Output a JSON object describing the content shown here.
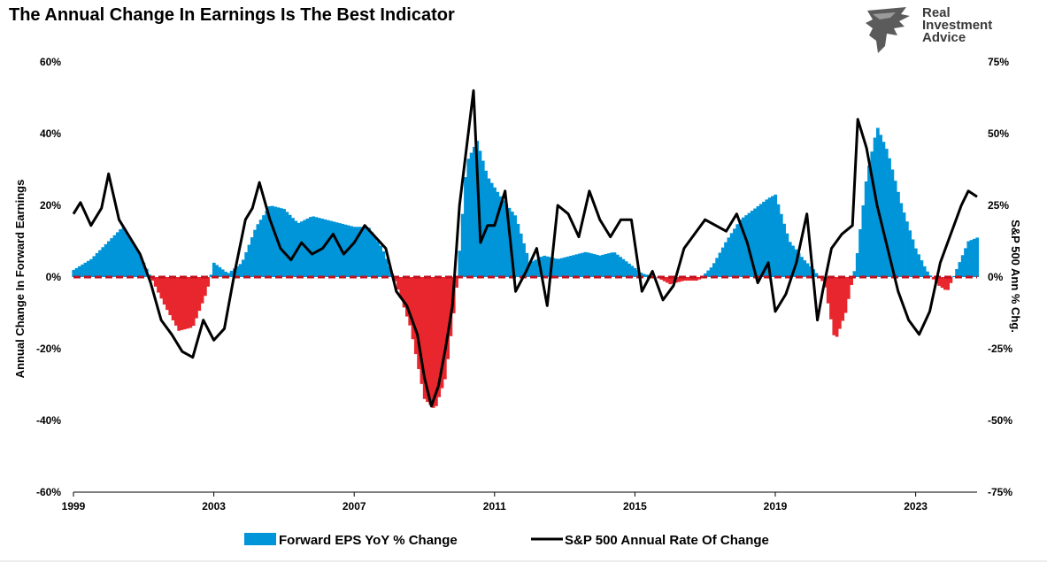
{
  "header": {
    "title": "The Annual Change In Earnings Is The Best Indicator",
    "logo_lines": [
      "Real",
      "Investment",
      "Advice"
    ]
  },
  "chart_data": {
    "type": "area",
    "title": "The Annual Change In Earnings Is The Best Indicator",
    "ylabel_left": "Annual Change In Forward Earnings",
    "ylabel_right": "S&P 500  Ann % Chg.",
    "ylim_left": [
      -60,
      60
    ],
    "ylim_right": [
      -75,
      75
    ],
    "left_ticks": [
      "60%",
      "40%",
      "20%",
      "0%",
      "-20%",
      "-40%",
      "-60%"
    ],
    "right_ticks": [
      "75%",
      "50%",
      "25%",
      "0%",
      "-25%",
      "-50%",
      "-75%"
    ],
    "x_ticks": [
      "1999",
      "2003",
      "2007",
      "2011",
      "2015",
      "2019",
      "2023"
    ],
    "xlim": [
      1999,
      2024.75
    ],
    "legend_position": "bottom-center",
    "colors": {
      "positive": "#0095d9",
      "negative": "#e8262d",
      "line": "#000000",
      "zero_line": "#c1121f"
    },
    "series": [
      {
        "name": "Forward EPS YoY % Change",
        "axis": "left",
        "x": [
          1999.0,
          1999.5,
          2000.0,
          2000.4,
          2000.8,
          2001.2,
          2001.6,
          2002.0,
          2002.4,
          2002.8,
          2003.0,
          2003.4,
          2003.8,
          2004.2,
          2004.6,
          2005.0,
          2005.4,
          2005.8,
          2006.2,
          2006.6,
          2007.0,
          2007.4,
          2007.8,
          2008.2,
          2008.6,
          2009.0,
          2009.3,
          2009.6,
          2009.9,
          2010.2,
          2010.5,
          2010.8,
          2011.2,
          2011.6,
          2012.0,
          2012.4,
          2012.8,
          2013.2,
          2013.6,
          2014.0,
          2014.4,
          2014.8,
          2015.2,
          2015.6,
          2016.0,
          2016.4,
          2016.8,
          2017.2,
          2017.6,
          2018.0,
          2018.4,
          2018.8,
          2019.0,
          2019.4,
          2019.8,
          2020.1,
          2020.4,
          2020.7,
          2021.0,
          2021.3,
          2021.6,
          2021.9,
          2022.2,
          2022.6,
          2023.0,
          2023.3,
          2023.6,
          2023.9,
          2024.2,
          2024.5,
          2024.75
        ],
        "values": [
          2,
          5,
          10,
          14,
          8,
          0,
          -8,
          -15,
          -14,
          -4,
          4,
          1,
          4,
          14,
          20,
          19,
          15,
          17,
          16,
          15,
          14,
          14,
          8,
          -2,
          -14,
          -34,
          -37,
          -28,
          -5,
          32,
          38,
          28,
          22,
          17,
          4,
          6,
          5,
          6,
          7,
          6,
          7,
          4,
          1,
          0,
          -2,
          -1,
          -1,
          3,
          10,
          16,
          19,
          22,
          23,
          10,
          5,
          2,
          -2,
          -18,
          -10,
          4,
          28,
          42,
          35,
          20,
          8,
          2,
          -2,
          -4,
          3,
          10,
          11
        ]
      },
      {
        "name": "S&P 500 Annual Rate Of Change",
        "axis": "right",
        "x": [
          1999.0,
          1999.2,
          1999.5,
          1999.8,
          2000.0,
          2000.3,
          2000.6,
          2000.9,
          2001.2,
          2001.5,
          2001.8,
          2002.1,
          2002.4,
          2002.7,
          2003.0,
          2003.3,
          2003.6,
          2003.9,
          2004.1,
          2004.3,
          2004.6,
          2004.9,
          2005.2,
          2005.5,
          2005.8,
          2006.1,
          2006.4,
          2006.7,
          2007.0,
          2007.3,
          2007.6,
          2007.9,
          2008.2,
          2008.5,
          2008.8,
          2009.0,
          2009.2,
          2009.4,
          2009.6,
          2009.8,
          2010.0,
          2010.2,
          2010.4,
          2010.6,
          2010.8,
          2011.0,
          2011.3,
          2011.6,
          2011.9,
          2012.2,
          2012.5,
          2012.8,
          2013.1,
          2013.4,
          2013.7,
          2014.0,
          2014.3,
          2014.6,
          2014.9,
          2015.2,
          2015.5,
          2015.8,
          2016.1,
          2016.4,
          2016.7,
          2017.0,
          2017.3,
          2017.6,
          2017.9,
          2018.2,
          2018.5,
          2018.8,
          2019.0,
          2019.3,
          2019.6,
          2019.9,
          2020.2,
          2020.35,
          2020.6,
          2020.9,
          2021.2,
          2021.35,
          2021.6,
          2021.9,
          2022.2,
          2022.5,
          2022.8,
          2023.1,
          2023.4,
          2023.7,
          2024.0,
          2024.3,
          2024.5,
          2024.75
        ],
        "values": [
          22,
          26,
          18,
          24,
          36,
          20,
          14,
          8,
          -2,
          -15,
          -20,
          -26,
          -28,
          -15,
          -22,
          -18,
          2,
          20,
          24,
          33,
          20,
          10,
          6,
          12,
          8,
          10,
          15,
          8,
          12,
          18,
          14,
          10,
          -5,
          -10,
          -20,
          -35,
          -45,
          -38,
          -25,
          -10,
          25,
          45,
          65,
          12,
          18,
          18,
          30,
          -5,
          2,
          10,
          -10,
          25,
          22,
          14,
          30,
          20,
          14,
          20,
          20,
          -5,
          2,
          -8,
          -3,
          10,
          15,
          20,
          18,
          16,
          22,
          12,
          -2,
          5,
          -12,
          -6,
          5,
          22,
          -15,
          -5,
          10,
          15,
          18,
          55,
          45,
          25,
          10,
          -5,
          -15,
          -20,
          -12,
          5,
          15,
          25,
          30,
          28
        ]
      }
    ]
  }
}
